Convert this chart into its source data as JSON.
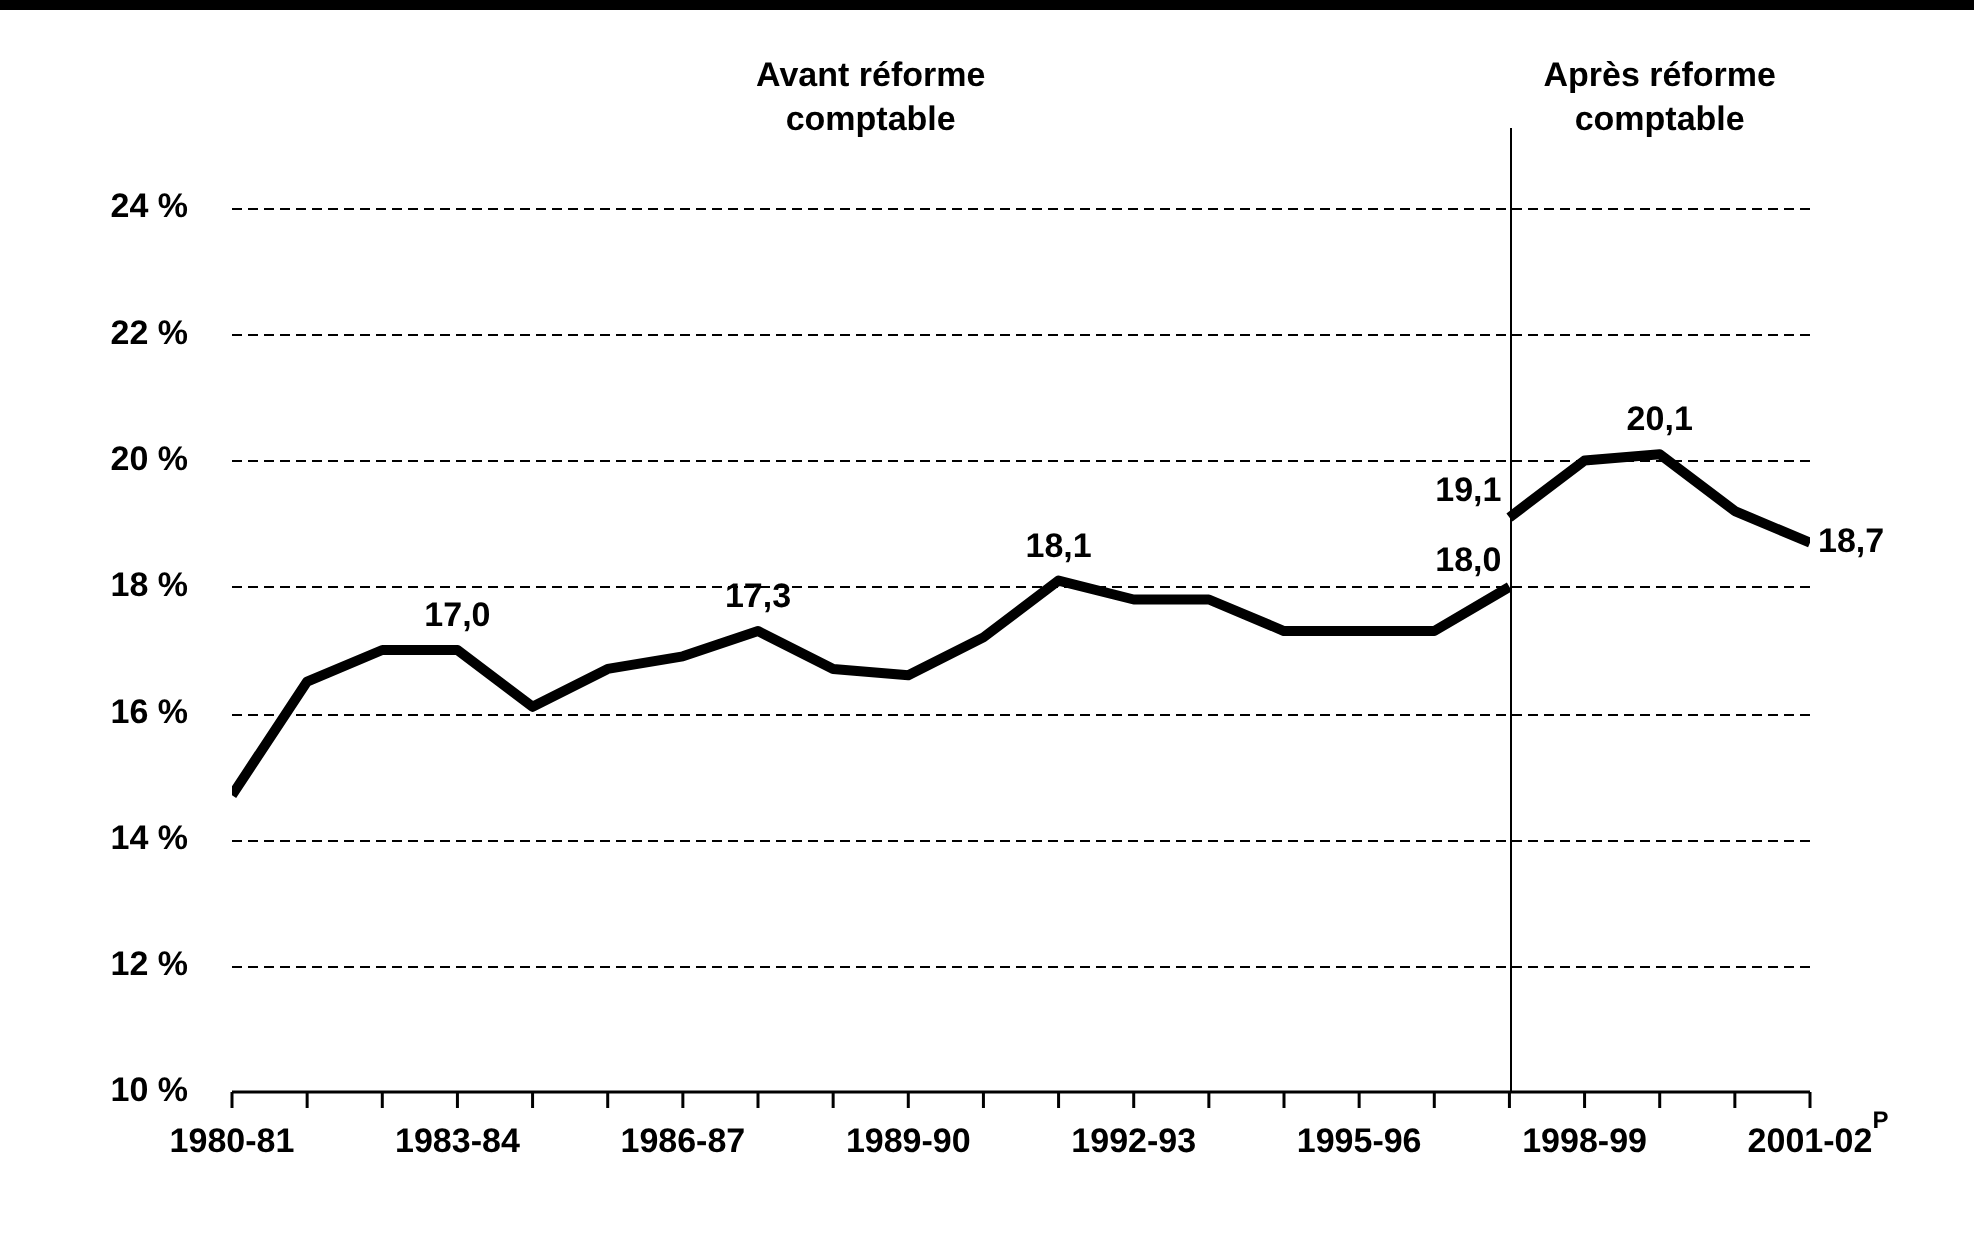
{
  "chart_data": {
    "type": "line",
    "categories": [
      "1980-81",
      null,
      null,
      "1983-84",
      null,
      null,
      "1986-87",
      null,
      null,
      "1989-90",
      null,
      null,
      "1992-93",
      null,
      null,
      "1995-96",
      null,
      null,
      "1998-99",
      null,
      null,
      "2001-02$^{P}$"
    ],
    "series": [
      {
        "color": "#000000",
        "values": [
          14.7,
          16.5,
          17.0,
          17.0,
          16.1,
          16.7,
          16.9,
          17.3,
          16.7,
          16.6,
          17.2,
          18.1,
          17.8,
          17.8,
          17.3,
          17.3,
          17.3,
          18.0,
          null,
          null,
          null,
          null
        ],
        "value_labels": [
          null,
          null,
          null,
          "17,0",
          null,
          null,
          null,
          "17,3",
          null,
          null,
          null,
          "18,1",
          null,
          null,
          null,
          null,
          null,
          "18,0",
          null,
          null,
          null,
          null
        ]
      },
      {
        "color": "#000000",
        "values": [
          null,
          null,
          null,
          null,
          null,
          null,
          null,
          null,
          null,
          null,
          null,
          null,
          null,
          null,
          null,
          null,
          null,
          19.1,
          20.0,
          20.1,
          19.2,
          18.7
        ],
        "value_labels": [
          null,
          null,
          null,
          null,
          null,
          null,
          null,
          null,
          null,
          null,
          null,
          null,
          null,
          null,
          null,
          null,
          null,
          "19,1",
          null,
          "20,1",
          null,
          "18,7"
        ]
      }
    ],
    "ylim": [
      10,
      24
    ],
    "yticks": [
      {
        "value": 10,
        "label": "10 %"
      },
      {
        "value": 12,
        "label": "12 %"
      },
      {
        "value": 14,
        "label": "14 %"
      },
      {
        "value": 16,
        "label": "16 %"
      },
      {
        "value": 18,
        "label": "18 %"
      },
      {
        "value": 20,
        "label": "20 %"
      },
      {
        "value": 22,
        "label": "22 %"
      },
      {
        "value": 24,
        "label": "24 %"
      }
    ],
    "grid": "y",
    "legend": false,
    "marker": "none",
    "line_style": "solid",
    "annotations": [
      "Avant réforme\ncomptable",
      "Après réforme\ncomptable"
    ]
  }
}
